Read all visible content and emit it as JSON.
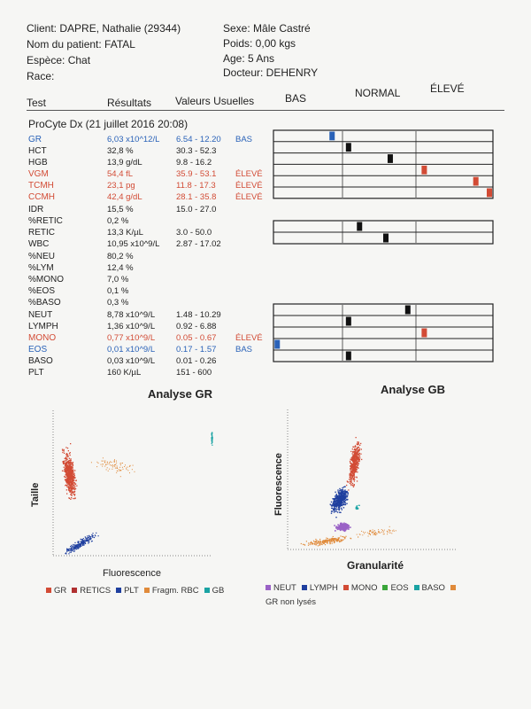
{
  "header": {
    "client": "Client: DAPRE, Nathalie (29344)",
    "patient": "Nom du patient: FATAL",
    "species": "Espèce: Chat",
    "race": "Race:",
    "sex": "Sexe: Mâle Castré",
    "weight": "Poids: 0,00 kgs",
    "age": "Age: 5 Ans",
    "doctor": "Docteur: DEHENRY"
  },
  "columns": {
    "test": "Test",
    "results": "Résultats",
    "ref": "Valeurs Usuelles",
    "low": "BAS",
    "normal": "NORMAL",
    "high": "ÉLEVÉ"
  },
  "instrument": "ProCyte Dx (21 juillet 2016 20:08)",
  "colors": {
    "low": "#2a62b8",
    "high": "#d24b35",
    "marker_normal": "#111111"
  },
  "rows": [
    {
      "test": "GR",
      "result": "6,03 x10^12/L",
      "ref": "6.54 - 12.20",
      "flag": "BAS",
      "status": "low"
    },
    {
      "test": "HCT",
      "result": "32,8 %",
      "ref": "30.3 - 52.3",
      "flag": "",
      "status": "normal"
    },
    {
      "test": "HGB",
      "result": "13,9 g/dL",
      "ref": "9.8 - 16.2",
      "flag": "",
      "status": "normal"
    },
    {
      "test": "VGM",
      "result": "54,4 fL",
      "ref": "35.9 - 53.1",
      "flag": "ÉLEVÉ",
      "status": "high"
    },
    {
      "test": "TCMH",
      "result": "23,1 pg",
      "ref": "11.8 - 17.3",
      "flag": "ÉLEVÉ",
      "status": "high"
    },
    {
      "test": "CCMH",
      "result": "42,4 g/dL",
      "ref": "28.1 - 35.8",
      "flag": "ÉLEVÉ",
      "status": "high"
    },
    {
      "test": "IDR",
      "result": "15,5 %",
      "ref": "15.0 - 27.0",
      "flag": "",
      "status": "normal"
    },
    {
      "test": "%RETIC",
      "result": "0,2 %",
      "ref": "",
      "flag": "",
      "status": "normal"
    },
    {
      "test": "RETIC",
      "result": "13,3 K/µL",
      "ref": "3.0 - 50.0",
      "flag": "",
      "status": "normal"
    },
    {
      "test": "WBC",
      "result": "10,95 x10^9/L",
      "ref": "2.87 - 17.02",
      "flag": "",
      "status": "normal"
    },
    {
      "test": "%NEU",
      "result": "80,2 %",
      "ref": "",
      "flag": "",
      "status": "normal"
    },
    {
      "test": "%LYM",
      "result": "12,4 %",
      "ref": "",
      "flag": "",
      "status": "normal"
    },
    {
      "test": "%MONO",
      "result": "7,0 %",
      "ref": "",
      "flag": "",
      "status": "normal"
    },
    {
      "test": "%EOS",
      "result": "0,1 %",
      "ref": "",
      "flag": "",
      "status": "normal"
    },
    {
      "test": "%BASO",
      "result": "0,3 %",
      "ref": "",
      "flag": "",
      "status": "normal"
    },
    {
      "test": "NEUT",
      "result": "8,78 x10^9/L",
      "ref": "1.48 - 10.29",
      "flag": "",
      "status": "normal"
    },
    {
      "test": "LYMPH",
      "result": "1,36 x10^9/L",
      "ref": "0.92 - 6.88",
      "flag": "",
      "status": "normal"
    },
    {
      "test": "MONO",
      "result": "0,77 x10^9/L",
      "ref": "0.05 - 0.67",
      "flag": "ÉLEVÉ",
      "status": "high"
    },
    {
      "test": "EOS",
      "result": "0,01 x10^9/L",
      "ref": "0.17 - 1.57",
      "flag": "BAS",
      "status": "low"
    },
    {
      "test": "BASO",
      "result": "0,03 x10^9/L",
      "ref": "0.01 - 0.26",
      "flag": "",
      "status": "normal"
    },
    {
      "test": "PLT",
      "result": "160 K/µL",
      "ref": "151 - 600",
      "flag": "",
      "status": "normal"
    }
  ],
  "plots": {
    "gr": {
      "title": "Analyse GR",
      "xlabel": "Fluorescence",
      "ylabel": "Taille",
      "legend": [
        {
          "label": "GR",
          "color": "#d24b35"
        },
        {
          "label": "RETICS",
          "color": "#b03030"
        },
        {
          "label": "PLT",
          "color": "#1f3f9f"
        },
        {
          "label": "Fragm. RBC",
          "color": "#e08a3a"
        },
        {
          "label": "GB",
          "color": "#1aa3a3"
        }
      ]
    },
    "gb": {
      "title": "Analyse GB",
      "xlabel": "Granularité",
      "ylabel": "Fluorescence",
      "legend": [
        {
          "label": "NEUT",
          "color": "#9a62c6"
        },
        {
          "label": "LYMPH",
          "color": "#1f3f9f"
        },
        {
          "label": "MONO",
          "color": "#d24b35"
        },
        {
          "label": "EOS",
          "color": "#3aa63a"
        },
        {
          "label": "BASO",
          "color": "#1aa3a3"
        },
        {
          "label": "GR non lysés",
          "color": "#e08a3a"
        }
      ]
    }
  }
}
